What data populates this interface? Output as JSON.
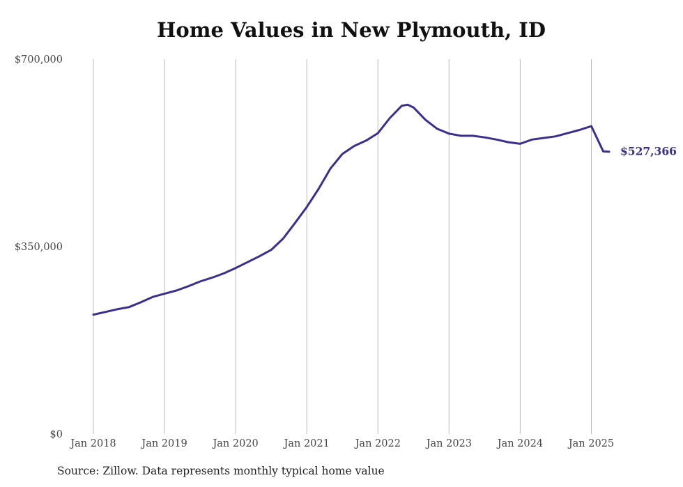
{
  "title": "Home Values in New Plymouth, ID",
  "source": "Source: Zillow. Data represents monthly typical home value",
  "colors": {
    "line": "#3a2f8c",
    "grid": "#bbbbbb"
  },
  "chart_data": {
    "type": "line",
    "title": "Home Values in New Plymouth, ID",
    "xlabel": "",
    "ylabel": "",
    "xlim": [
      "2018-01",
      "2025-04"
    ],
    "ylim": [
      0,
      700000
    ],
    "yticks": [
      0,
      350000,
      700000
    ],
    "ytick_labels": [
      "$0",
      "$350,000",
      "$700,000"
    ],
    "xticks": [
      "2018-01",
      "2019-01",
      "2020-01",
      "2021-01",
      "2022-01",
      "2023-01",
      "2024-01",
      "2025-01"
    ],
    "xtick_labels": [
      "Jan 2018",
      "Jan 2019",
      "Jan 2020",
      "Jan 2021",
      "Jan 2022",
      "Jan 2023",
      "Jan 2024",
      "Jan 2025"
    ],
    "grid": "vertical",
    "end_label": "$527,366",
    "series": [
      {
        "x": [
          "2018-01",
          "2018-03",
          "2018-05",
          "2018-07",
          "2018-09",
          "2018-11",
          "2019-01",
          "2019-03",
          "2019-05",
          "2019-07",
          "2019-09",
          "2019-11",
          "2020-01",
          "2020-03",
          "2020-05",
          "2020-07",
          "2020-09",
          "2020-11",
          "2021-01",
          "2021-03",
          "2021-05",
          "2021-07",
          "2021-09",
          "2021-11",
          "2022-01",
          "2022-03",
          "2022-05",
          "2022-06",
          "2022-07",
          "2022-09",
          "2022-11",
          "2023-01",
          "2023-03",
          "2023-05",
          "2023-07",
          "2023-09",
          "2023-11",
          "2024-01",
          "2024-03",
          "2024-05",
          "2024-07",
          "2024-09",
          "2024-11",
          "2025-01",
          "2025-03",
          "2025-04"
        ],
        "values": [
          223000,
          228000,
          233000,
          237000,
          246000,
          256000,
          262000,
          268000,
          276000,
          285000,
          292000,
          300000,
          310000,
          321000,
          332000,
          344000,
          365000,
          394000,
          424000,
          458000,
          496000,
          523000,
          538000,
          548000,
          562000,
          590000,
          613000,
          615000,
          610000,
          587000,
          570000,
          561000,
          557000,
          557000,
          554000,
          550000,
          545000,
          542000,
          550000,
          553000,
          556000,
          562000,
          568000,
          575000,
          528000,
          527366
        ]
      }
    ]
  }
}
